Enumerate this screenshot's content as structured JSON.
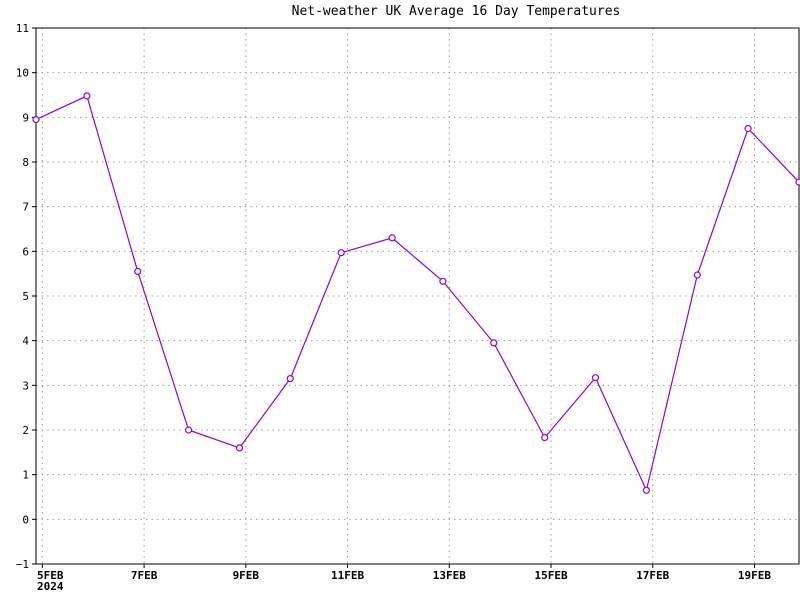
{
  "colors": {
    "series": "#9400d3",
    "grid": "#9a9a9a",
    "axis": "#000000"
  },
  "chart_data": {
    "type": "line",
    "title": "Net-weather UK Average 16 Day Temperatures",
    "xlabel": "",
    "ylabel": "",
    "ylim": [
      -1,
      11
    ],
    "yticks": [
      -1,
      0,
      1,
      2,
      3,
      4,
      5,
      6,
      7,
      8,
      9,
      10,
      11
    ],
    "xlim": [
      "2024-02-04T21:00",
      "2024-02-19T21:00"
    ],
    "xticks": [
      {
        "date": "2024-02-05",
        "label": "5FEB",
        "sublabel": "2024"
      },
      {
        "date": "2024-02-07",
        "label": "7FEB"
      },
      {
        "date": "2024-02-09",
        "label": "9FEB"
      },
      {
        "date": "2024-02-11",
        "label": "11FEB"
      },
      {
        "date": "2024-02-13",
        "label": "13FEB"
      },
      {
        "date": "2024-02-15",
        "label": "15FEB"
      },
      {
        "date": "2024-02-17",
        "label": "17FEB"
      },
      {
        "date": "2024-02-19",
        "label": "19FEB"
      }
    ],
    "grid": true,
    "series": [
      {
        "x": [
          "2024-02-04T21:00",
          "2024-02-05T21:00",
          "2024-02-06T21:00",
          "2024-02-07T21:00",
          "2024-02-08T21:00",
          "2024-02-09T21:00",
          "2024-02-10T21:00",
          "2024-02-11T21:00",
          "2024-02-12T21:00",
          "2024-02-13T21:00",
          "2024-02-14T21:00",
          "2024-02-15T21:00",
          "2024-02-16T21:00",
          "2024-02-17T21:00",
          "2024-02-18T21:00",
          "2024-02-19T21:00"
        ],
        "values": [
          8.95,
          9.48,
          5.55,
          2.0,
          1.6,
          3.15,
          5.97,
          6.3,
          5.33,
          3.95,
          1.83,
          3.17,
          0.65,
          5.47,
          8.75,
          7.55
        ]
      }
    ]
  }
}
